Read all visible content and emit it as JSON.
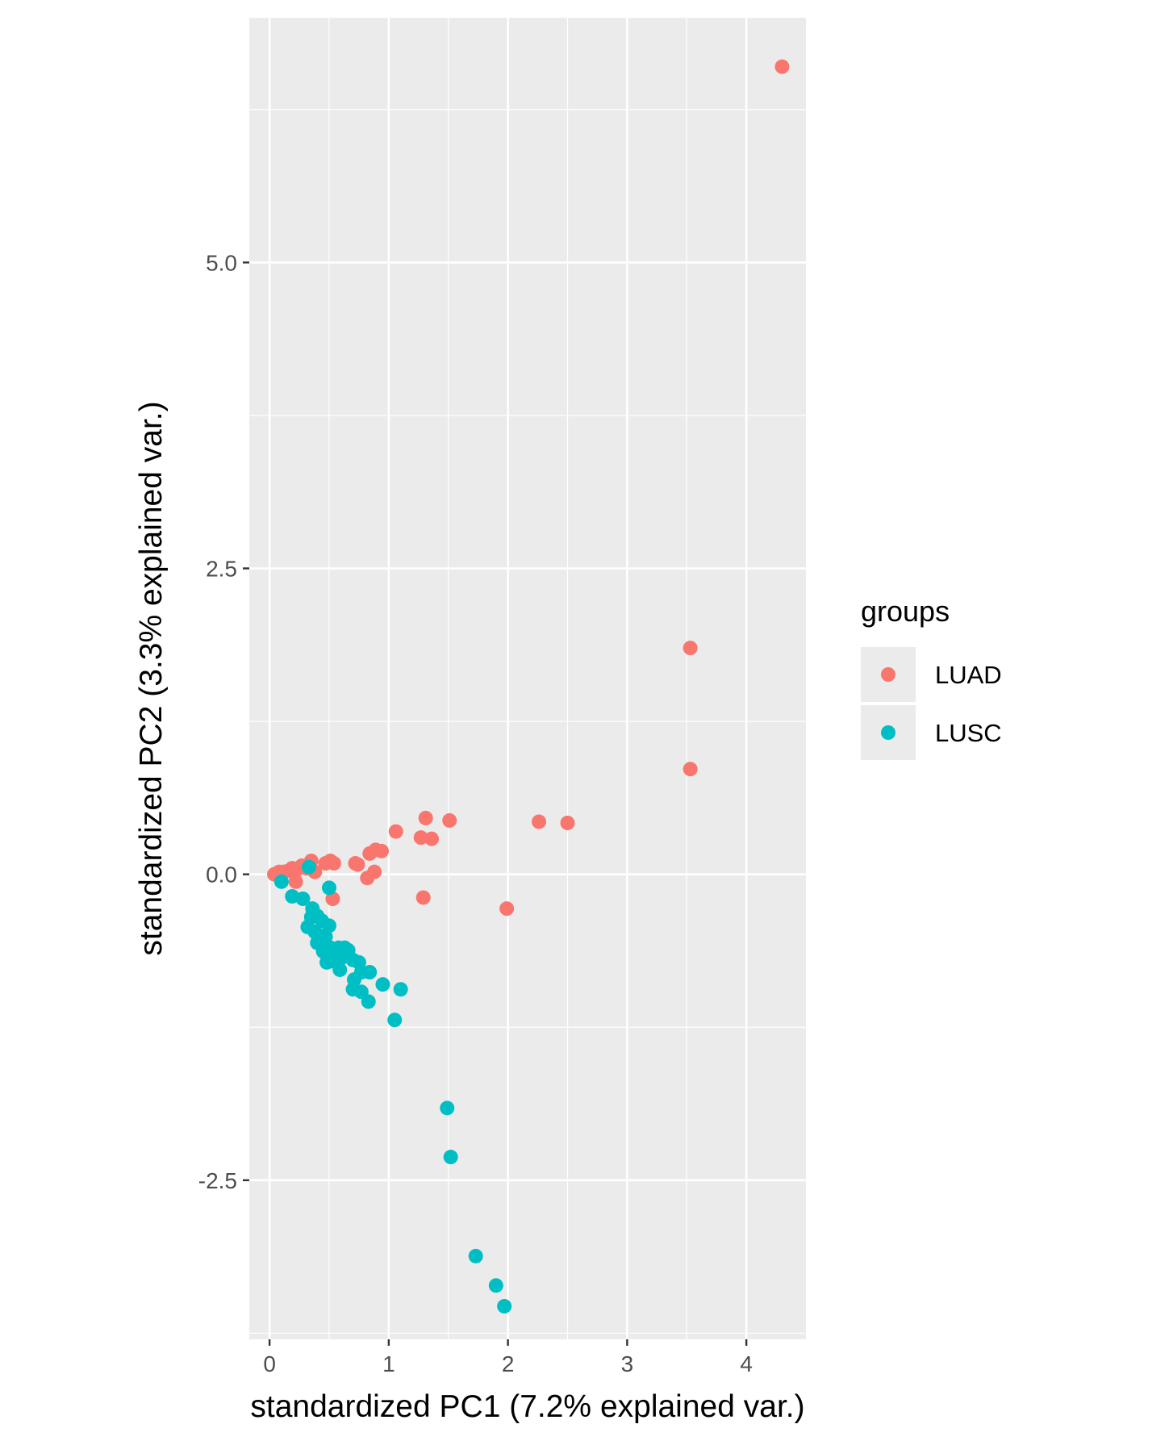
{
  "chart_data": {
    "type": "scatter",
    "title": "",
    "xlabel": "standardized PC1 (7.2% explained var.)",
    "ylabel": "standardized PC2 (3.3% explained var.)",
    "xlim": [
      -0.17,
      4.5
    ],
    "ylim": [
      -3.8,
      7.0
    ],
    "x_ticks": [
      0,
      1,
      2,
      3,
      4
    ],
    "x_tick_labels": [
      "0",
      "1",
      "2",
      "3",
      "4"
    ],
    "y_ticks": [
      -2.5,
      0.0,
      2.5,
      5.0
    ],
    "y_tick_labels": [
      "-2.5",
      "0.0",
      "2.5",
      "5.0"
    ],
    "grid": true,
    "legend_position": "right",
    "legend_title": "groups",
    "colors": {
      "LUAD": "#F8766D",
      "LUSC": "#00BFC4",
      "panel": "#EBEBEB",
      "grid": "#FFFFFF"
    },
    "series": [
      {
        "name": "LUAD",
        "points": [
          [
            4.3,
            6.6
          ],
          [
            3.53,
            1.85
          ],
          [
            3.53,
            0.86
          ],
          [
            2.5,
            0.42
          ],
          [
            2.26,
            0.43
          ],
          [
            1.99,
            -0.28
          ],
          [
            1.51,
            0.44
          ],
          [
            1.36,
            0.29
          ],
          [
            1.31,
            0.46
          ],
          [
            1.27,
            0.3
          ],
          [
            1.29,
            -0.19
          ],
          [
            1.06,
            0.35
          ],
          [
            0.94,
            0.19
          ],
          [
            0.89,
            0.2
          ],
          [
            0.88,
            0.02
          ],
          [
            0.84,
            0.17
          ],
          [
            0.82,
            -0.03
          ],
          [
            0.74,
            0.08
          ],
          [
            0.72,
            0.09
          ],
          [
            0.54,
            0.09
          ],
          [
            0.51,
            0.11
          ],
          [
            0.47,
            0.09
          ],
          [
            0.53,
            -0.2
          ],
          [
            0.38,
            0.02
          ],
          [
            0.35,
            0.11
          ],
          [
            0.31,
            0.05
          ],
          [
            0.27,
            0.07
          ],
          [
            0.23,
            0.04
          ],
          [
            0.22,
            -0.06
          ],
          [
            0.19,
            0.05
          ],
          [
            0.16,
            0.03
          ],
          [
            0.12,
            0.02
          ],
          [
            0.08,
            0.02
          ],
          [
            0.04,
            0.0
          ]
        ]
      },
      {
        "name": "LUSC",
        "points": [
          [
            0.33,
            0.06
          ],
          [
            0.1,
            -0.06
          ],
          [
            0.5,
            -0.11
          ],
          [
            0.19,
            -0.18
          ],
          [
            0.28,
            -0.2
          ],
          [
            0.36,
            -0.28
          ],
          [
            0.4,
            -0.34
          ],
          [
            0.44,
            -0.38
          ],
          [
            0.5,
            -0.42
          ],
          [
            0.35,
            -0.35
          ],
          [
            0.32,
            -0.43
          ],
          [
            0.38,
            -0.47
          ],
          [
            0.42,
            -0.5
          ],
          [
            0.47,
            -0.51
          ],
          [
            0.4,
            -0.56
          ],
          [
            0.45,
            -0.56
          ],
          [
            0.51,
            -0.6
          ],
          [
            0.58,
            -0.6
          ],
          [
            0.63,
            -0.6
          ],
          [
            0.66,
            -0.62
          ],
          [
            0.55,
            -0.65
          ],
          [
            0.45,
            -0.63
          ],
          [
            0.61,
            -0.68
          ],
          [
            0.53,
            -0.71
          ],
          [
            0.48,
            -0.72
          ],
          [
            0.7,
            -0.7
          ],
          [
            0.75,
            -0.72
          ],
          [
            0.59,
            -0.78
          ],
          [
            0.77,
            -0.8
          ],
          [
            0.84,
            -0.8
          ],
          [
            0.71,
            -0.86
          ],
          [
            0.95,
            -0.9
          ],
          [
            1.1,
            -0.94
          ],
          [
            0.7,
            -0.94
          ],
          [
            0.77,
            -0.96
          ],
          [
            0.83,
            -1.04
          ],
          [
            1.05,
            -1.19
          ],
          [
            1.49,
            -1.91
          ],
          [
            1.52,
            -2.31
          ],
          [
            1.73,
            -3.12
          ],
          [
            1.9,
            -3.36
          ],
          [
            1.97,
            -3.53
          ]
        ]
      }
    ]
  }
}
